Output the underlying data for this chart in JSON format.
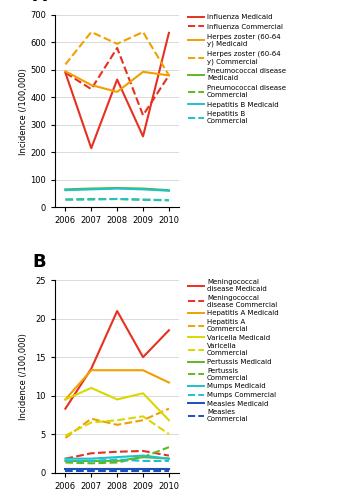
{
  "years": [
    2006,
    2007,
    2008,
    2009,
    2010
  ],
  "panel_A": {
    "influenza_medicaid": [
      490,
      215,
      465,
      258,
      635
    ],
    "influenza_commercial": [
      490,
      430,
      580,
      335,
      480
    ],
    "herpes_zoster_medicaid": [
      495,
      445,
      420,
      493,
      480
    ],
    "herpes_zoster_commercial": [
      520,
      638,
      595,
      638,
      480
    ],
    "pneumococcal_medicaid": [
      65,
      68,
      70,
      68,
      62
    ],
    "pneumococcal_commercial": [
      28,
      30,
      30,
      27,
      25
    ],
    "hepatitis_b_medicaid": [
      62,
      65,
      68,
      65,
      60
    ],
    "hepatitis_b_commercial": [
      28,
      28,
      30,
      28,
      26
    ]
  },
  "panel_B": {
    "meningococcal_medicaid": [
      8.3,
      13.5,
      21.0,
      15.0,
      18.5
    ],
    "meningococcal_commercial": [
      1.8,
      2.5,
      2.7,
      2.8,
      2.2
    ],
    "hepatitis_a_medicaid": [
      9.5,
      13.3,
      13.3,
      13.3,
      11.7
    ],
    "hepatitis_a_commercial": [
      4.5,
      7.0,
      6.2,
      6.8,
      8.3
    ],
    "varicella_medicaid": [
      9.5,
      11.0,
      9.5,
      10.3,
      6.8
    ],
    "varicella_commercial": [
      4.8,
      6.5,
      6.8,
      7.3,
      5.0
    ],
    "pertussis_medicaid": [
      1.5,
      1.5,
      1.5,
      2.0,
      1.8
    ],
    "pertussis_commercial": [
      1.3,
      1.2,
      1.3,
      2.0,
      3.3
    ],
    "mumps_medicaid": [
      1.8,
      1.8,
      2.0,
      2.2,
      1.8
    ],
    "mumps_commercial": [
      1.5,
      1.5,
      1.7,
      1.5,
      1.5
    ],
    "measles_medicaid": [
      0.4,
      0.4,
      0.4,
      0.4,
      0.4
    ],
    "measles_commercial": [
      0.2,
      0.2,
      0.2,
      0.2,
      0.2
    ]
  },
  "colors": {
    "red": "#e83020",
    "orange": "#f0a000",
    "yellow": "#d8d800",
    "green": "#60b820",
    "cyan": "#20c0cc",
    "blue": "#1850c0"
  },
  "legend_A": [
    [
      "red",
      "-",
      "Influenza Medicaid"
    ],
    [
      "red",
      "--",
      "Influenza Commercial"
    ],
    [
      "orange",
      "-",
      "Herpes zoster (60-64\ny) Medicaid"
    ],
    [
      "orange",
      "--",
      "Herpes zoster (60-64\ny) Commercial"
    ],
    [
      "green",
      "-",
      "Pneumococcal disease\nMedicaid"
    ],
    [
      "green",
      "--",
      "Pneumococcal disease\nCommercial"
    ],
    [
      "cyan",
      "-",
      "Hepatitis B Medicaid"
    ],
    [
      "cyan",
      "--",
      "Hepatitis B\nCommercial"
    ]
  ],
  "legend_B": [
    [
      "red",
      "-",
      "Meningococcal\ndisease Medicaid"
    ],
    [
      "red",
      "--",
      "Meningococcal\ndisease Commercial"
    ],
    [
      "orange",
      "-",
      "Hepatitis A Medicaid"
    ],
    [
      "orange",
      "--",
      "Hepatitis A\nCommercial"
    ],
    [
      "yellow",
      "-",
      "Varicella Medicaid"
    ],
    [
      "yellow",
      "--",
      "Varicella\nCommercial"
    ],
    [
      "green",
      "-",
      "Pertussis Medicaid"
    ],
    [
      "green",
      "--",
      "Pertussis\nCommercial"
    ],
    [
      "cyan",
      "-",
      "Mumps Medicaid"
    ],
    [
      "cyan",
      "--",
      "Mumps Commercial"
    ],
    [
      "blue",
      "-",
      "Measles Medicaid"
    ],
    [
      "blue",
      "--",
      "Measles\nCommercial"
    ]
  ]
}
